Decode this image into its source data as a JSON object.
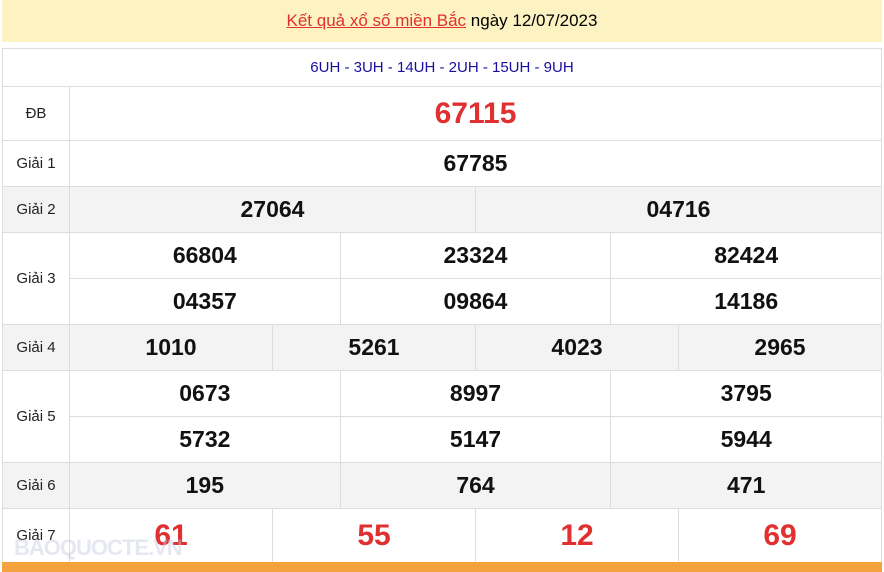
{
  "title": {
    "link_text": "Kết quả xổ số miền Bắc",
    "date_text": "ngày 12/07/2023"
  },
  "codes": "6UH - 3UH - 14UH - 2UH - 15UH - 9UH",
  "rows": [
    {
      "label": "ĐB",
      "lines": [
        [
          "67115"
        ]
      ],
      "red": true,
      "big": true
    },
    {
      "label": "Giải 1",
      "lines": [
        [
          "67785"
        ]
      ]
    },
    {
      "label": "Giải 2",
      "lines": [
        [
          "27064",
          "04716"
        ]
      ]
    },
    {
      "label": "Giải 3",
      "lines": [
        [
          "66804",
          "23324",
          "82424"
        ],
        [
          "04357",
          "09864",
          "14186"
        ]
      ]
    },
    {
      "label": "Giải 4",
      "lines": [
        [
          "1010",
          "5261",
          "4023",
          "2965"
        ]
      ]
    },
    {
      "label": "Giải 5",
      "lines": [
        [
          "0673",
          "8997",
          "3795"
        ],
        [
          "5732",
          "5147",
          "5944"
        ]
      ]
    },
    {
      "label": "Giải 6",
      "lines": [
        [
          "195",
          "764",
          "471"
        ]
      ]
    },
    {
      "label": "Giải 7",
      "lines": [
        [
          "61",
          "55",
          "12",
          "69"
        ]
      ],
      "red": true,
      "big": true
    }
  ],
  "watermark": "BAOQUOCTE.VN",
  "colors": {
    "accent_red": "#e03030",
    "header_bg": "#fcf2c2",
    "codes_blue": "#1a0ea0",
    "footer_orange": "#f3a23e"
  }
}
